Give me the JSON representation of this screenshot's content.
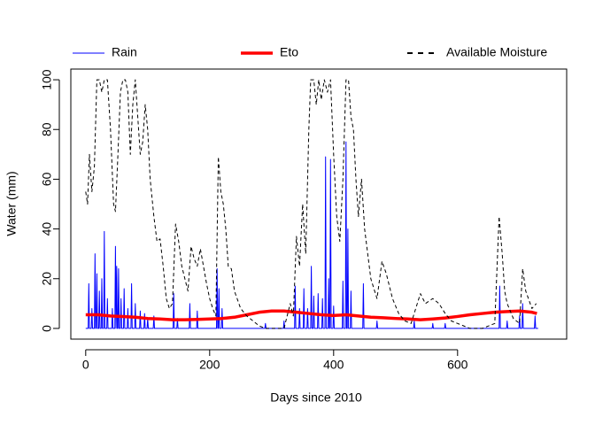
{
  "chart_data": {
    "type": "line",
    "xlabel": "Days since 2010",
    "ylabel": "Water (mm)",
    "xlim": [
      -24,
      776
    ],
    "ylim": [
      -4.3,
      104.3
    ],
    "xticks": [
      0,
      200,
      400,
      600
    ],
    "yticks": [
      0,
      20,
      40,
      60,
      80,
      100
    ],
    "legend": "top",
    "series": [
      {
        "name": "Rain",
        "color": "#0000ff",
        "linewidth": 1,
        "dashed": false,
        "x": [
          0,
          4,
          5,
          6,
          9,
          10,
          11,
          14,
          15,
          16,
          17,
          18,
          19,
          21,
          22,
          23,
          25,
          26,
          27,
          29,
          30,
          31,
          34,
          35,
          36,
          42,
          43,
          44,
          47,
          48,
          49,
          50,
          51,
          52,
          53,
          54,
          56,
          57,
          58,
          61,
          62,
          63,
          67,
          68,
          69,
          73,
          74,
          75,
          79,
          80,
          81,
          87,
          88,
          89,
          94,
          95,
          96,
          99,
          100,
          101,
          109,
          110,
          111,
          141,
          142,
          143,
          147,
          148,
          149,
          167,
          168,
          169,
          179,
          180,
          181,
          211,
          212,
          213,
          214,
          215,
          216,
          219,
          220,
          221,
          289,
          290,
          291,
          319,
          320,
          321,
          337,
          338,
          339,
          344,
          345,
          346,
          351,
          352,
          353,
          357,
          358,
          359,
          363,
          364,
          365,
          367,
          368,
          369,
          374,
          375,
          376,
          381,
          382,
          383,
          386,
          387,
          388,
          391,
          392,
          393,
          394,
          395,
          396,
          399,
          400,
          401,
          414,
          415,
          416,
          419,
          420,
          421,
          422,
          423,
          424,
          427,
          428,
          429,
          447,
          448,
          449,
          469,
          470,
          471,
          529,
          530,
          531,
          559,
          560,
          561,
          579,
          580,
          581,
          667,
          668,
          669,
          679,
          680,
          681,
          699,
          700,
          701,
          704,
          705,
          706,
          724,
          725,
          726,
          730
        ],
        "values": [
          0,
          0,
          18,
          0,
          0,
          8,
          0,
          0,
          30,
          0,
          0,
          22,
          0,
          0,
          15,
          0,
          0,
          20,
          0,
          0,
          39,
          0,
          0,
          12,
          0,
          0,
          8,
          0,
          0,
          33,
          0,
          25,
          0,
          0,
          24,
          0,
          0,
          12,
          0,
          0,
          16,
          0,
          0,
          8,
          0,
          0,
          18,
          0,
          0,
          10,
          0,
          0,
          7,
          0,
          0,
          6,
          0,
          0,
          4,
          0,
          0,
          5,
          0,
          0,
          14,
          0,
          0,
          4,
          0,
          0,
          10,
          0,
          0,
          7,
          0,
          0,
          24,
          0,
          0,
          16,
          0,
          0,
          8,
          0,
          0,
          2,
          0,
          0,
          3,
          0,
          0,
          17,
          0,
          0,
          8,
          0,
          0,
          16,
          0,
          0,
          8,
          0,
          0,
          25,
          0,
          0,
          13,
          0,
          0,
          14,
          0,
          0,
          12,
          0,
          0,
          69,
          0,
          0,
          20,
          0,
          0,
          68,
          0,
          0,
          9,
          0,
          0,
          19,
          0,
          0,
          75,
          0,
          0,
          40,
          0,
          0,
          15,
          0,
          0,
          18,
          0,
          0,
          3,
          0,
          0,
          3,
          0,
          0,
          2,
          0,
          0,
          2,
          0,
          0,
          17,
          0,
          0,
          3,
          0,
          0,
          5,
          0,
          0,
          10,
          0,
          0,
          5,
          0,
          0
        ]
      },
      {
        "name": "Eto",
        "color": "#ff0000",
        "linewidth": 3.5,
        "dashed": false,
        "x": [
          0,
          20,
          40,
          60,
          80,
          100,
          120,
          140,
          160,
          180,
          200,
          220,
          240,
          260,
          280,
          300,
          320,
          340,
          360,
          380,
          400,
          420,
          440,
          460,
          480,
          500,
          520,
          540,
          560,
          580,
          600,
          620,
          640,
          660,
          680,
          700,
          720,
          728
        ],
        "values": [
          5.5,
          5.5,
          5,
          4.8,
          4.5,
          4,
          3.8,
          3.5,
          3.5,
          3.6,
          3.8,
          4,
          4.5,
          5.5,
          6.5,
          7,
          7,
          6.5,
          6,
          5.5,
          5.2,
          5.5,
          5,
          4.5,
          4.3,
          4,
          3.8,
          3.5,
          3.8,
          4.2,
          4.8,
          5.5,
          6,
          6.5,
          6.8,
          7,
          6.5,
          6
        ]
      },
      {
        "name": "Available Moisture",
        "color": "#000000",
        "linewidth": 1,
        "dashed": true,
        "x": [
          0,
          3,
          6,
          10,
          14,
          18,
          22,
          26,
          30,
          35,
          40,
          45,
          48,
          52,
          56,
          60,
          64,
          68,
          72,
          76,
          80,
          84,
          88,
          92,
          96,
          100,
          104,
          110,
          115,
          120,
          125,
          130,
          135,
          140,
          145,
          150,
          155,
          160,
          165,
          170,
          175,
          180,
          185,
          190,
          195,
          200,
          205,
          210,
          214,
          218,
          222,
          226,
          230,
          235,
          240,
          250,
          260,
          270,
          280,
          290,
          300,
          310,
          320,
          330,
          335,
          340,
          345,
          350,
          355,
          360,
          363,
          368,
          372,
          376,
          380,
          385,
          390,
          395,
          400,
          405,
          410,
          415,
          420,
          424,
          428,
          432,
          436,
          440,
          445,
          450,
          455,
          460,
          470,
          478,
          485,
          495,
          505,
          515,
          525,
          535,
          540,
          548,
          560,
          570,
          580,
          590,
          600,
          610,
          620,
          640,
          660,
          667,
          672,
          676,
          680,
          690,
          700,
          705,
          710,
          720,
          727
        ],
        "values": [
          55,
          50,
          70,
          55,
          65,
          100,
          100,
          95,
          100,
          100,
          80,
          50,
          47,
          70,
          95,
          100,
          100,
          95,
          70,
          90,
          100,
          85,
          70,
          75,
          90,
          80,
          60,
          45,
          35,
          36,
          25,
          12,
          8,
          10,
          42,
          35,
          25,
          20,
          15,
          33,
          28,
          25,
          32,
          25,
          18,
          12,
          8,
          5,
          69,
          55,
          50,
          40,
          25,
          24,
          15,
          8,
          5,
          3,
          1,
          0,
          0,
          0,
          0,
          10,
          5,
          37,
          25,
          50,
          30,
          80,
          100,
          100,
          90,
          100,
          92,
          100,
          95,
          100,
          70,
          45,
          35,
          60,
          100,
          100,
          85,
          80,
          60,
          45,
          60,
          40,
          30,
          20,
          12,
          27,
          22,
          12,
          6,
          3,
          2,
          10,
          14,
          10,
          12,
          10,
          6,
          3,
          2,
          1,
          0,
          0,
          2,
          45,
          30,
          15,
          10,
          4,
          2,
          24,
          15,
          8,
          10
        ]
      }
    ]
  }
}
